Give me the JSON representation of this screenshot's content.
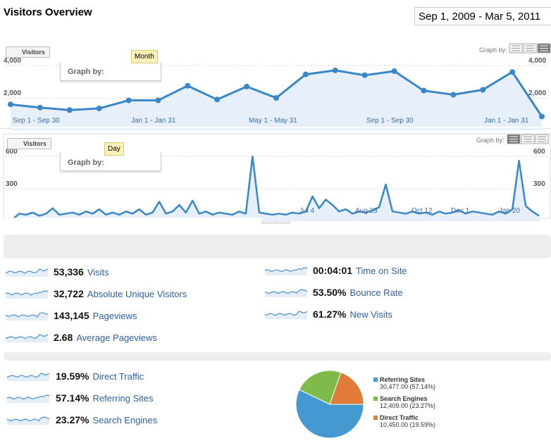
{
  "header": {
    "title": "Visitors Overview",
    "date_range": "Sep 1, 2009 - Mar 5, 2011"
  },
  "monthly_chart": {
    "type": "line",
    "tab": "Visitors",
    "graph_by": "Graph by:",
    "popup_graph_by": "Graph by:",
    "tooltip": "Month",
    "color": "#3a87c8",
    "values": [
      1600,
      1400,
      1250,
      1350,
      1850,
      1850,
      2750,
      1900,
      2700,
      2000,
      3450,
      3700,
      3400,
      3650,
      2450,
      2200,
      2500,
      3600,
      850
    ],
    "ylim": [
      0,
      4000
    ],
    "yticks": [
      {
        "value": 2000,
        "label": "2,000"
      },
      {
        "value": 4000,
        "label": "4,000"
      }
    ],
    "x_labels": [
      "Sep 1 - Sep 30",
      "Jan 1 - Jan 31",
      "May 1 - May 31",
      "Sep 1 - Sep 30",
      "Jan 1 - Jan 31"
    ]
  },
  "daily_chart": {
    "type": "line",
    "tab": "Visitors",
    "graph_by": "Graph by:",
    "popup_graph_by": "Graph by:",
    "tooltip": "Day",
    "color": "#3a87c8",
    "values": [
      20,
      70,
      60,
      80,
      50,
      70,
      120,
      60,
      70,
      80,
      60,
      90,
      70,
      110,
      60,
      80,
      60,
      90,
      70,
      110,
      60,
      80,
      180,
      70,
      90,
      150,
      80,
      190,
      70,
      90,
      60,
      80,
      70,
      60,
      90,
      70,
      600,
      80,
      70,
      60,
      70,
      60,
      80,
      70,
      90,
      230,
      120,
      200,
      150,
      90,
      110,
      70,
      90,
      80,
      100,
      130,
      340,
      90,
      80,
      70,
      90,
      70,
      80,
      60,
      90,
      70,
      80,
      100,
      70,
      90,
      80,
      70,
      60,
      90,
      70,
      110,
      560,
      140,
      90,
      50
    ],
    "ylim": [
      0,
      600
    ],
    "yticks": [
      300,
      600
    ],
    "x_labels": [
      "Jul 4",
      "Aug 23",
      "Oct 12",
      "Dec 1",
      "Jan 20"
    ]
  },
  "site_metrics": [
    {
      "value": "53,336",
      "label": "Visits"
    },
    {
      "value": "32,722",
      "label": "Absolute Unique Visitors"
    },
    {
      "value": "143,145",
      "label": "Pageviews"
    },
    {
      "value": "2.68",
      "label": "Average Pageviews"
    },
    {
      "value": "00:04:01",
      "label": "Time on Site"
    },
    {
      "value": "53.50%",
      "label": "Bounce Rate"
    },
    {
      "value": "61.27%",
      "label": "New Visits"
    }
  ],
  "traffic_sources": [
    {
      "value": "19.59%",
      "label": "Direct Traffic"
    },
    {
      "value": "57.14%",
      "label": "Referring Sites"
    },
    {
      "value": "23.27%",
      "label": "Search Engines"
    }
  ],
  "pie": {
    "type": "pie",
    "slices": [
      {
        "name": "Referring Sites",
        "value": 30477,
        "label": "30,477.00 (57.14%)",
        "color": "#4399d0"
      },
      {
        "name": "Search Engines",
        "value": 12409,
        "label": "12,409.00 (23.27%)",
        "color": "#7fbb4a"
      },
      {
        "name": "Direct Traffic",
        "value": 10450,
        "label": "10,450.00 (19.59%)",
        "color": "#e07b3a"
      }
    ]
  }
}
